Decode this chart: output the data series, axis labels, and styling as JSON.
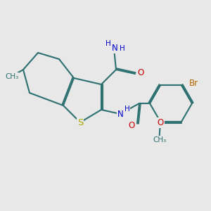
{
  "bg_color": "#e8e8e8",
  "bond_color": "#2d7070",
  "bond_width": 1.5,
  "dbo": 0.06,
  "atom_colors": {
    "N": "#0000cc",
    "O": "#cc0000",
    "S": "#aaaa00",
    "Br": "#bb6600",
    "C": "#2d7070",
    "H": "#2d7070"
  },
  "fs": 8.5,
  "fs_small": 7.5
}
